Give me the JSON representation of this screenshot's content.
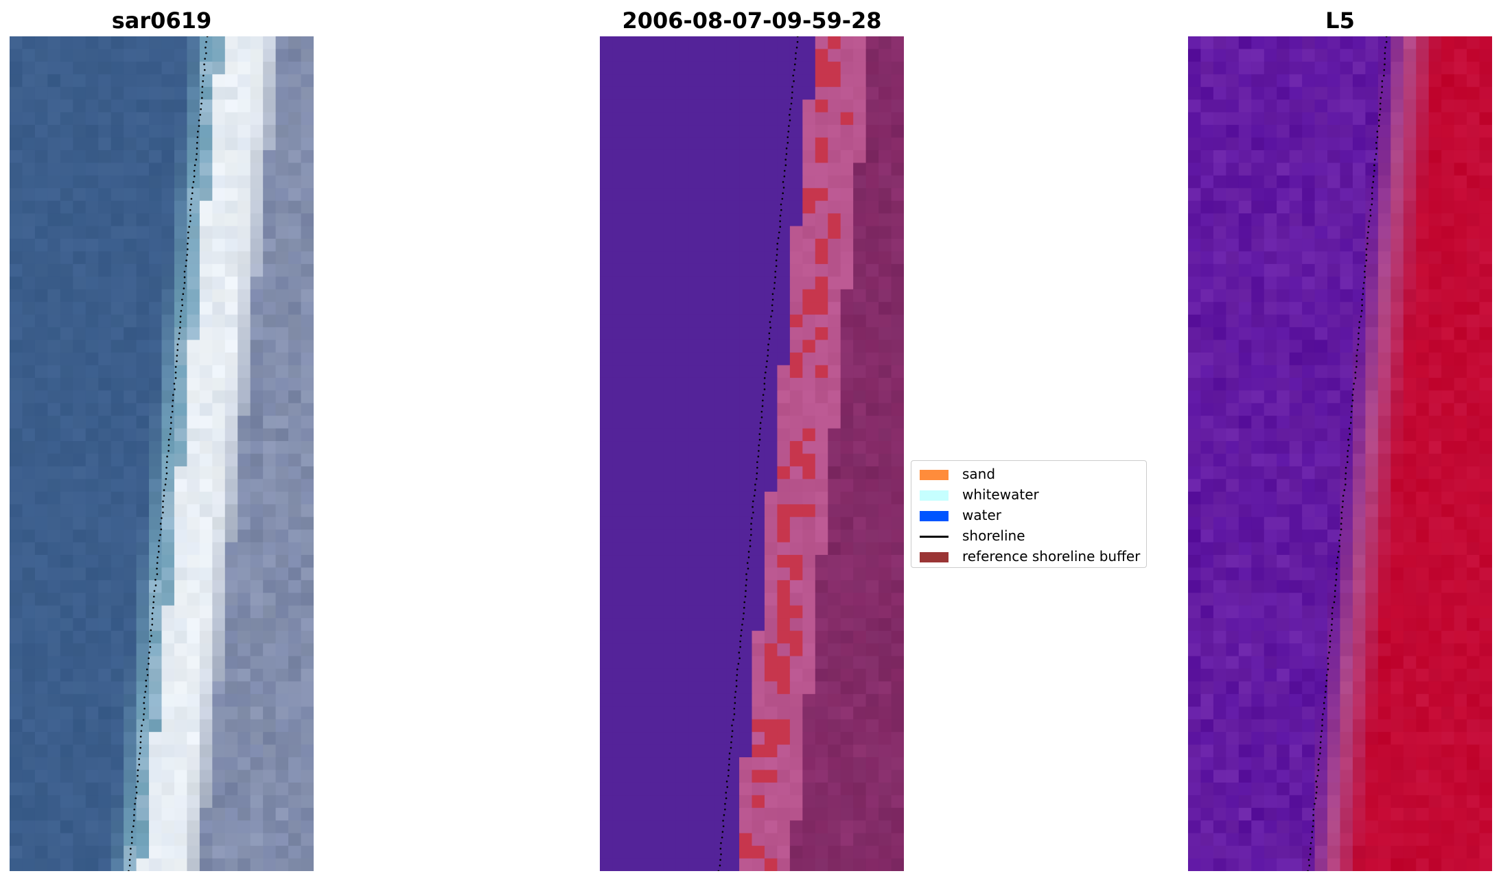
{
  "panels": [
    {
      "title": "sar0619",
      "kind": "rgb-image",
      "colors": {
        "water": "#3d5f8c",
        "nearshore": "#6fa0b8",
        "whitewater": "#eef3f7",
        "land": "#7a86a8"
      }
    },
    {
      "title": "2006-08-07-09-59-28",
      "kind": "classified-image",
      "colors": {
        "water": "#542399",
        "buffer": "#b9568f",
        "land": "#8a2e6c",
        "sand_in_buffer": "#c7364d"
      }
    },
    {
      "title": "L5",
      "kind": "index-image",
      "colors": {
        "low": "#5a129f",
        "mid": "#b24a8a",
        "high": "#c2052e"
      }
    }
  ],
  "legend": {
    "items": [
      {
        "label": "sand",
        "type": "patch",
        "color": "#ff8c3b"
      },
      {
        "label": "whitewater",
        "type": "patch",
        "color": "#c6ffff"
      },
      {
        "label": "water",
        "type": "patch",
        "color": "#0055ff"
      },
      {
        "label": "shoreline",
        "type": "line",
        "color": "#000000"
      },
      {
        "label": "reference shoreline buffer",
        "type": "patch",
        "color": "#9a3535"
      }
    ]
  },
  "shoreline": {
    "color": "#000000",
    "style": "dotted"
  }
}
